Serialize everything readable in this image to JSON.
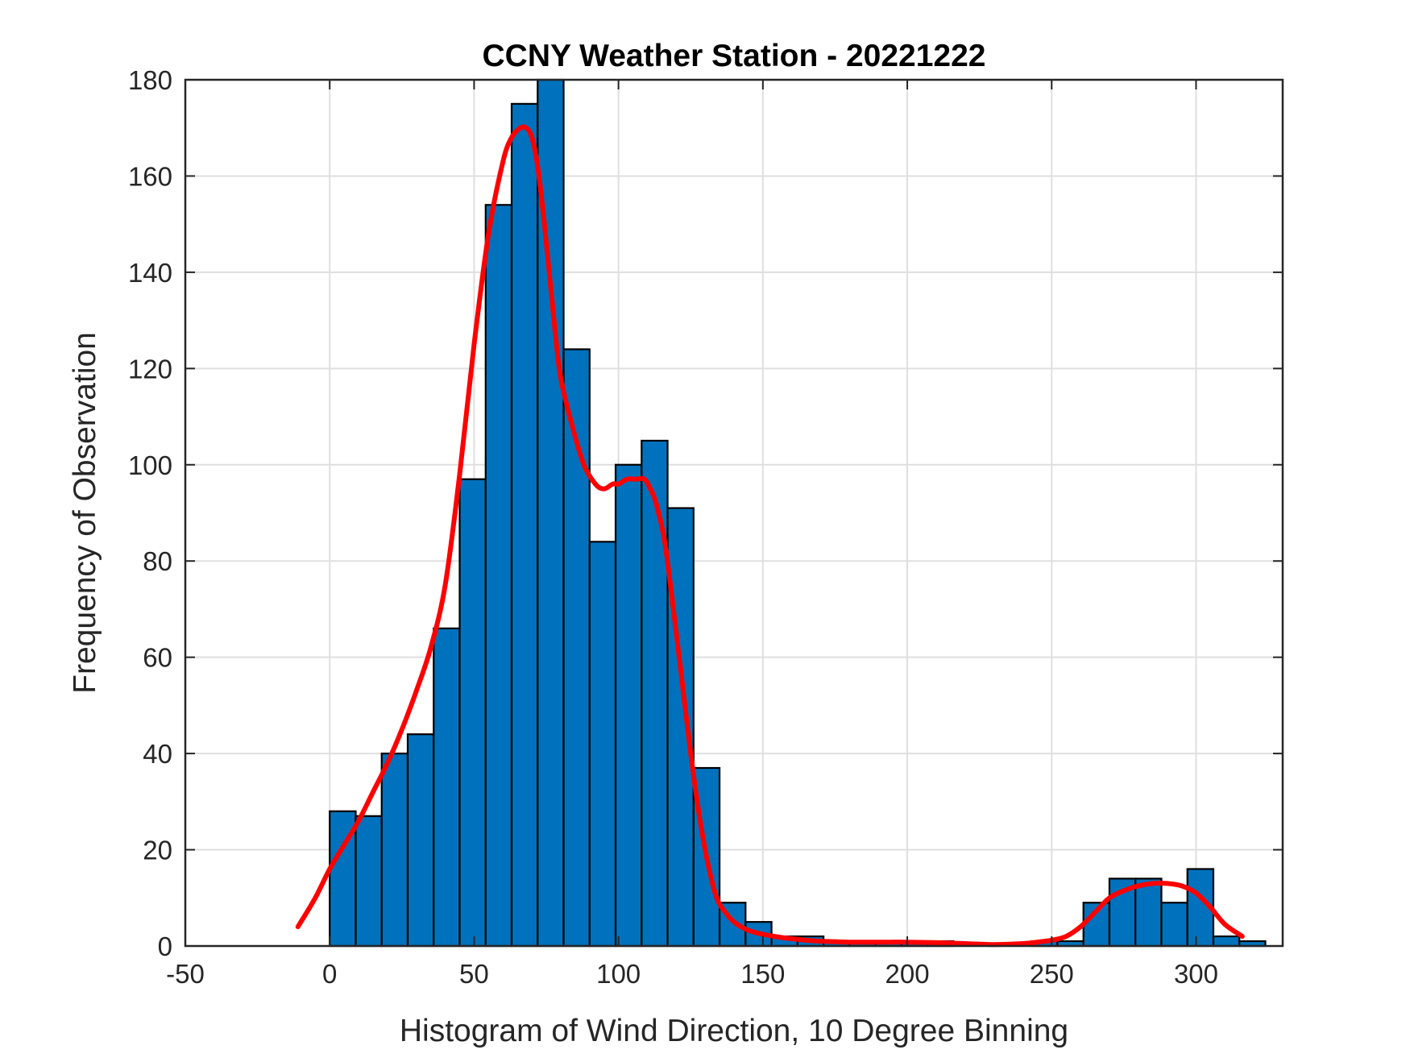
{
  "chart_data": {
    "type": "bar",
    "title": "CCNY Weather Station - 20221222",
    "xlabel": "Histogram of Wind Direction, 10 Degree Binning",
    "ylabel": "Frequency of Observation",
    "xlim": [
      -50,
      330
    ],
    "ylim": [
      0,
      180
    ],
    "x_ticks": [
      -50,
      0,
      50,
      100,
      150,
      200,
      250,
      300
    ],
    "y_ticks": [
      0,
      20,
      40,
      60,
      80,
      100,
      120,
      140,
      160,
      180
    ],
    "grid": true,
    "bin_width": 9,
    "bins": {
      "start": [
        0,
        9,
        18,
        27,
        36,
        45,
        54,
        63,
        72,
        81,
        90,
        99,
        108,
        117,
        126,
        135,
        144,
        153,
        162,
        171,
        180,
        189,
        198,
        207,
        216,
        225,
        234,
        243,
        252,
        261,
        270,
        279,
        288,
        297,
        306,
        315
      ],
      "counts": [
        28,
        27,
        40,
        44,
        66,
        97,
        154,
        175,
        180,
        124,
        84,
        100,
        105,
        91,
        37,
        9,
        5,
        2,
        2,
        1,
        1,
        1,
        1,
        1,
        0,
        0,
        0,
        1,
        1,
        9,
        14,
        14,
        9,
        16,
        2,
        1
      ]
    },
    "fit_curve": {
      "x": [
        -11,
        -5,
        0,
        5,
        10,
        15,
        20,
        25,
        30,
        35,
        40,
        45,
        50,
        55,
        60,
        63,
        66,
        68,
        70,
        72,
        74,
        76,
        78,
        80,
        84,
        88,
        92,
        95,
        98,
        100,
        103,
        106,
        109,
        111,
        113,
        116,
        119,
        122,
        125,
        128,
        131,
        134,
        137,
        140,
        144,
        148,
        152,
        156,
        160,
        165,
        170,
        175,
        180,
        190,
        200,
        210,
        220,
        230,
        240,
        245,
        250,
        255,
        260,
        265,
        270,
        275,
        280,
        285,
        290,
        295,
        300,
        305,
        310,
        316
      ],
      "y": [
        4,
        10,
        16,
        21,
        26,
        32,
        38,
        45,
        53,
        62,
        75,
        98,
        125,
        148,
        163,
        168,
        170,
        170,
        168,
        162,
        152,
        140,
        128,
        118,
        108,
        100,
        96,
        95,
        96,
        96,
        97,
        97,
        97,
        95,
        92,
        84,
        70,
        55,
        40,
        27,
        17,
        10,
        7,
        5,
        3.5,
        2.7,
        2.2,
        1.8,
        1.5,
        1.2,
        1,
        0.9,
        0.8,
        0.8,
        0.8,
        0.7,
        0.5,
        0.3,
        0.5,
        0.8,
        1.2,
        2,
        4,
        7,
        10,
        11.5,
        12.5,
        13,
        13,
        12.5,
        11,
        8,
        4.5,
        2
      ]
    },
    "colors": {
      "bar_fill": "#0072BD",
      "bar_edge": "#000000",
      "curve": "#FF0000",
      "grid": "#DFDFDF",
      "axes": "#262626"
    }
  }
}
